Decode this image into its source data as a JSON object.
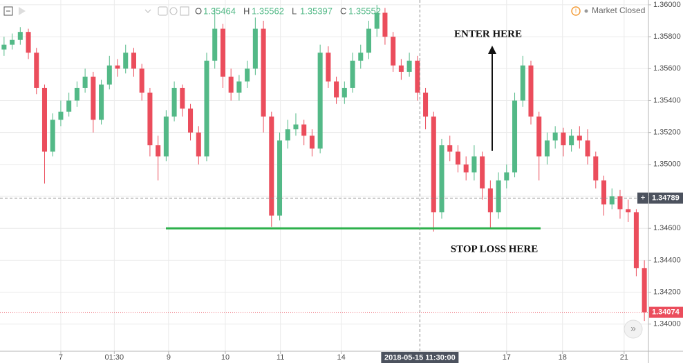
{
  "chart_data": {
    "type": "candlestick",
    "ohlc_header": [
      {
        "label": "O",
        "value": "1.35464"
      },
      {
        "label": "H",
        "value": "1.35562"
      },
      {
        "label": "L",
        "value": "1.35397"
      },
      {
        "label": "C",
        "value": "1.35552"
      }
    ],
    "status": "Market Closed",
    "up_color": "#53b987",
    "down_color": "#eb4d5c",
    "grid": true,
    "open": [
      1.3572,
      1.3575,
      1.3578,
      1.3583,
      1.357,
      1.3548,
      1.3508,
      1.3528,
      1.3533,
      1.354,
      1.3548,
      1.3555,
      1.3528,
      1.355,
      1.3562,
      1.356,
      1.357,
      1.356,
      1.3545,
      1.3512,
      1.3505,
      1.353,
      1.3548,
      1.3535,
      1.352,
      1.3505,
      1.3565,
      1.3585,
      1.3555,
      1.3545,
      1.3552,
      1.356,
      1.3585,
      1.353,
      1.3468,
      1.3515,
      1.3522,
      1.3525,
      1.3518,
      1.351,
      1.357,
      1.3552,
      1.3542,
      1.3548,
      1.3565,
      1.357,
      1.3585,
      1.3595,
      1.358,
      1.3562,
      1.3558,
      1.3565,
      1.3545,
      1.353,
      1.347,
      1.3512,
      1.3508,
      1.35,
      1.3495,
      1.3505,
      1.3485,
      1.347,
      1.349,
      1.3495,
      1.354,
      1.3562,
      1.353,
      1.3505,
      1.3515,
      1.352,
      1.3512,
      1.3518,
      1.3515,
      1.3505,
      1.349,
      1.3475,
      1.348,
      1.3472,
      1.347,
      1.3435
    ],
    "high": [
      1.358,
      1.3582,
      1.3586,
      1.3585,
      1.3573,
      1.355,
      1.3532,
      1.354,
      1.3545,
      1.3552,
      1.356,
      1.3558,
      1.3553,
      1.3568,
      1.3566,
      1.3575,
      1.3573,
      1.3563,
      1.3548,
      1.3518,
      1.3534,
      1.3552,
      1.355,
      1.3538,
      1.3524,
      1.357,
      1.3598,
      1.3588,
      1.356,
      1.3556,
      1.3565,
      1.3592,
      1.359,
      1.3533,
      1.352,
      1.3528,
      1.3532,
      1.3528,
      1.3522,
      1.3575,
      1.3574,
      1.3555,
      1.3552,
      1.357,
      1.3575,
      1.359,
      1.36,
      1.3598,
      1.3583,
      1.3566,
      1.357,
      1.3568,
      1.3548,
      1.3533,
      1.3516,
      1.3518,
      1.3512,
      1.3505,
      1.3512,
      1.3508,
      1.349,
      1.3495,
      1.35,
      1.3545,
      1.3568,
      1.3565,
      1.3533,
      1.352,
      1.3524,
      1.3523,
      1.3522,
      1.3524,
      1.3522,
      1.3508,
      1.3493,
      1.3485,
      1.3484,
      1.3478,
      1.3472,
      1.344
    ],
    "low": [
      1.3568,
      1.3572,
      1.3575,
      1.3566,
      1.3544,
      1.3488,
      1.3505,
      1.3524,
      1.353,
      1.3536,
      1.3545,
      1.352,
      1.3525,
      1.3547,
      1.3555,
      1.3557,
      1.3555,
      1.354,
      1.3505,
      1.349,
      1.3502,
      1.3527,
      1.353,
      1.3515,
      1.35,
      1.3502,
      1.356,
      1.3548,
      1.354,
      1.354,
      1.3548,
      1.3556,
      1.352,
      1.3461,
      1.3465,
      1.351,
      1.3518,
      1.3512,
      1.3505,
      1.3507,
      1.3548,
      1.3538,
      1.3538,
      1.3545,
      1.356,
      1.3566,
      1.358,
      1.3575,
      1.3558,
      1.3553,
      1.3555,
      1.354,
      1.3522,
      1.3458,
      1.3466,
      1.3502,
      1.3495,
      1.349,
      1.349,
      1.3478,
      1.346,
      1.3466,
      1.3485,
      1.3492,
      1.3536,
      1.3525,
      1.349,
      1.35,
      1.351,
      1.3505,
      1.3508,
      1.351,
      1.35,
      1.3485,
      1.3468,
      1.3472,
      1.3466,
      1.3464,
      1.343,
      1.3402
    ],
    "close": [
      1.3575,
      1.3578,
      1.3583,
      1.357,
      1.3548,
      1.3508,
      1.3528,
      1.3533,
      1.354,
      1.3548,
      1.3555,
      1.3528,
      1.355,
      1.3562,
      1.356,
      1.357,
      1.356,
      1.3545,
      1.3512,
      1.3505,
      1.353,
      1.3548,
      1.3535,
      1.352,
      1.3505,
      1.3565,
      1.3585,
      1.3555,
      1.3545,
      1.3552,
      1.356,
      1.3585,
      1.353,
      1.3468,
      1.3515,
      1.3522,
      1.3525,
      1.3518,
      1.351,
      1.357,
      1.3552,
      1.3542,
      1.3548,
      1.3565,
      1.357,
      1.3585,
      1.3595,
      1.358,
      1.3562,
      1.3558,
      1.3565,
      1.3545,
      1.353,
      1.347,
      1.3512,
      1.3508,
      1.35,
      1.3495,
      1.3505,
      1.3485,
      1.347,
      1.349,
      1.3495,
      1.354,
      1.3562,
      1.353,
      1.3505,
      1.3515,
      1.352,
      1.3512,
      1.3518,
      1.3515,
      1.3505,
      1.349,
      1.3475,
      1.348,
      1.3472,
      1.347,
      1.3435,
      1.34074
    ],
    "xlim": [
      0,
      80
    ],
    "xticks": [
      {
        "value": 7.5,
        "label": "7"
      },
      {
        "value": 14.1,
        "label": "01:30"
      },
      {
        "value": 20.8,
        "label": "9"
      },
      {
        "value": 27.8,
        "label": "10"
      },
      {
        "value": 34.6,
        "label": "11"
      },
      {
        "value": 42.1,
        "label": "14"
      },
      {
        "value": 62.5,
        "label": "17"
      },
      {
        "value": 69.4,
        "label": "18"
      },
      {
        "value": 77.0,
        "label": "21"
      }
    ],
    "ylim": [
      1.3383,
      1.3603
    ],
    "yticks": [
      {
        "value": 1.34,
        "label": "1.34000"
      },
      {
        "value": 1.342,
        "label": "1.34200"
      },
      {
        "value": 1.344,
        "label": "1.34400"
      },
      {
        "value": 1.346,
        "label": "1.34600"
      },
      {
        "value": 1.348,
        "label": "1.34800"
      },
      {
        "value": 1.35,
        "label": "1.35000"
      },
      {
        "value": 1.352,
        "label": "1.35200"
      },
      {
        "value": 1.354,
        "label": "1.35400"
      },
      {
        "value": 1.356,
        "label": "1.35600"
      },
      {
        "value": 1.358,
        "label": "1.35800"
      },
      {
        "value": 1.36,
        "label": "1.36000"
      }
    ],
    "crosshair": {
      "x": {
        "value": 51.8,
        "label": "2018-05-15 11:30:00"
      },
      "y": {
        "value": 1.34789,
        "label": "1.34789"
      }
    },
    "last_price": {
      "value": 1.34074,
      "label": "1.34074"
    },
    "support_level": {
      "value": 1.346,
      "color": "#2db04b"
    },
    "annotations": [
      "ENTER HERE",
      "STOP LOSS HERE"
    ]
  }
}
